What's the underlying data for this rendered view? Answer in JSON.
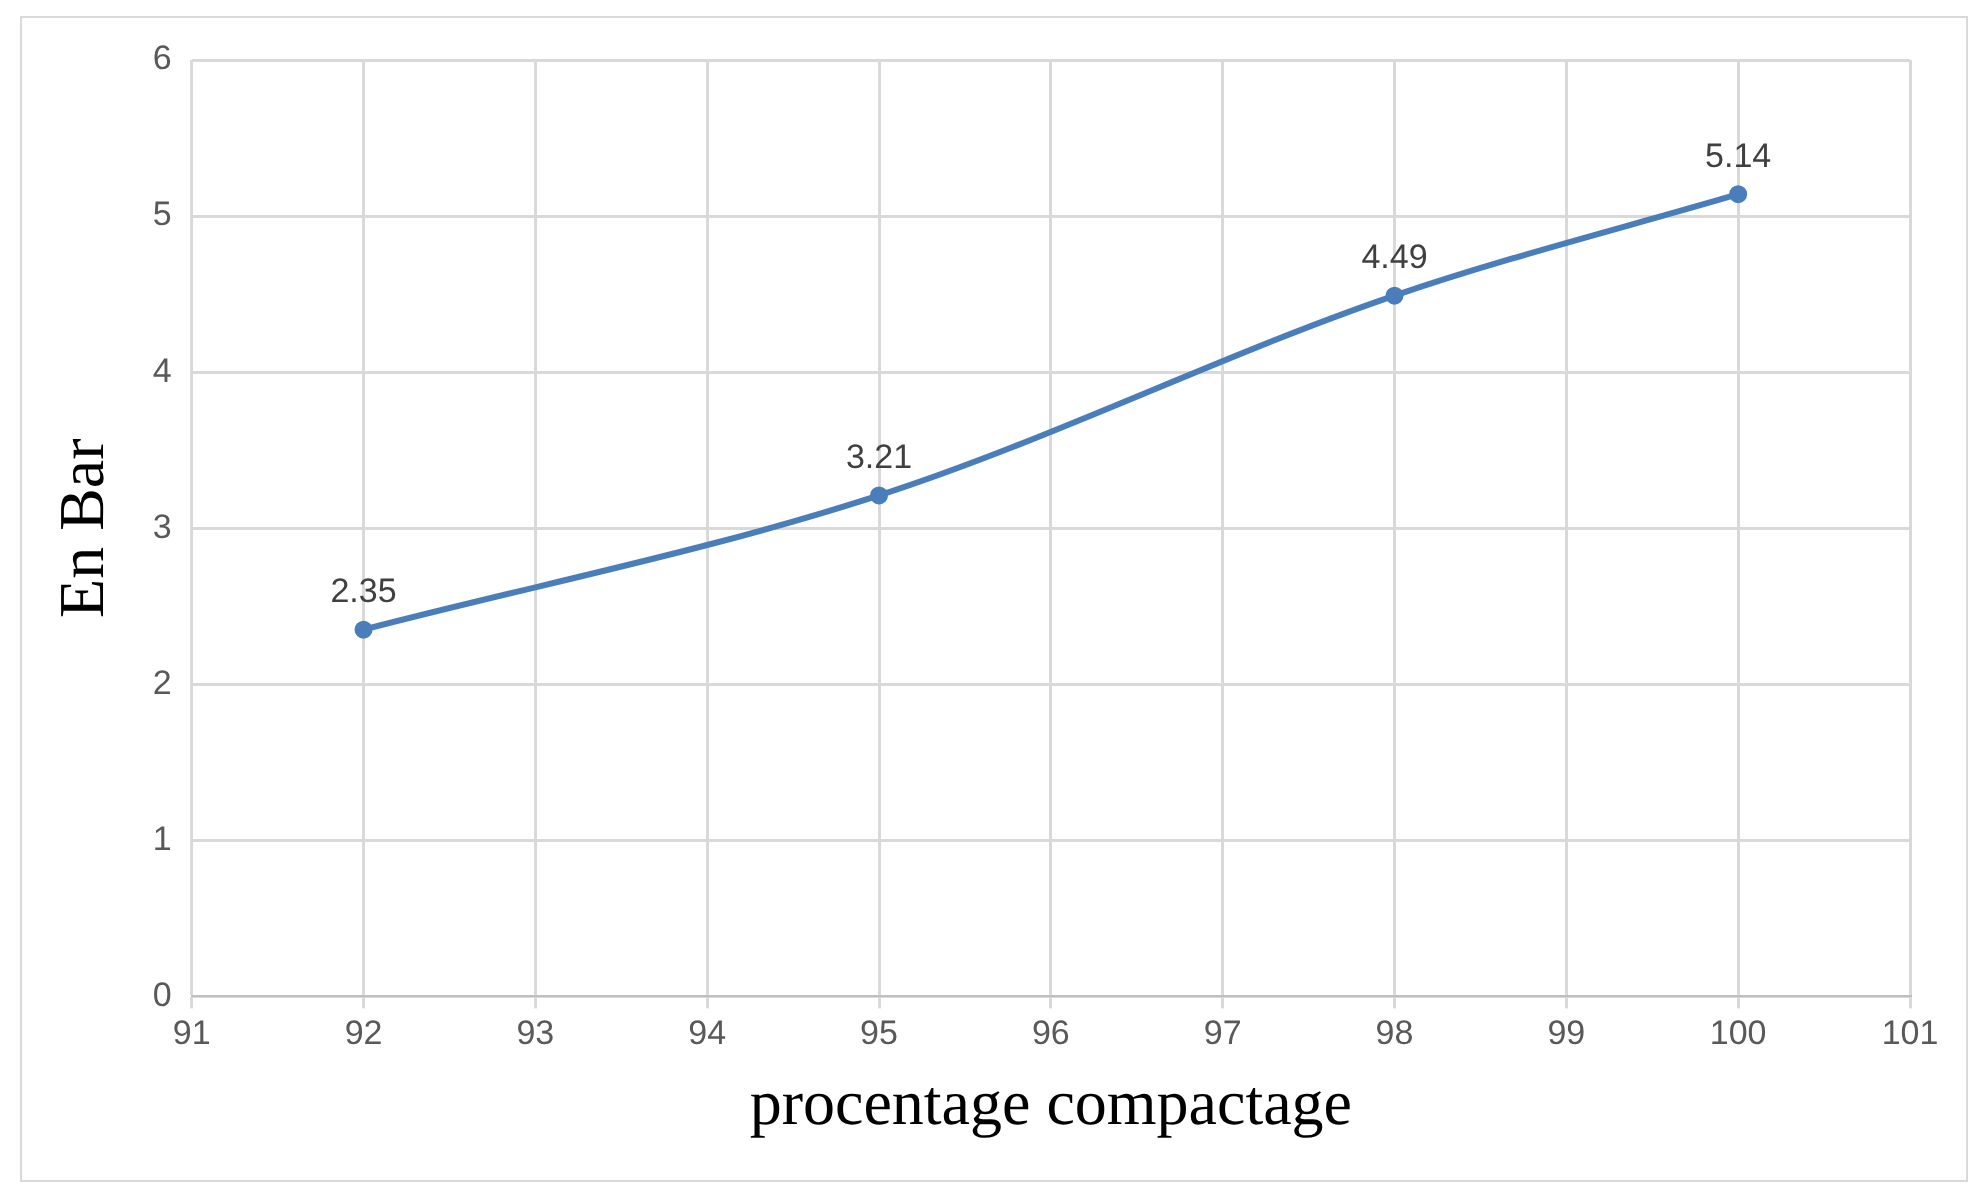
{
  "chart_data": {
    "type": "line",
    "xlabel": "procentage compactage",
    "ylabel": "En Bar",
    "x": [
      92,
      95,
      98,
      100
    ],
    "series": [
      {
        "color": "#4a7ebb",
        "values": [
          2.35,
          3.21,
          4.49,
          5.14
        ]
      }
    ],
    "xlim": [
      91,
      101
    ],
    "xticks": [
      91,
      92,
      93,
      94,
      95,
      96,
      97,
      98,
      99,
      100,
      101
    ],
    "ylim": [
      0,
      6
    ],
    "yticks": [
      0,
      1,
      2,
      3,
      4,
      5,
      6
    ],
    "grid": true,
    "legend": false,
    "marker": "circle",
    "line_style": "solid",
    "data_labels": true
  }
}
